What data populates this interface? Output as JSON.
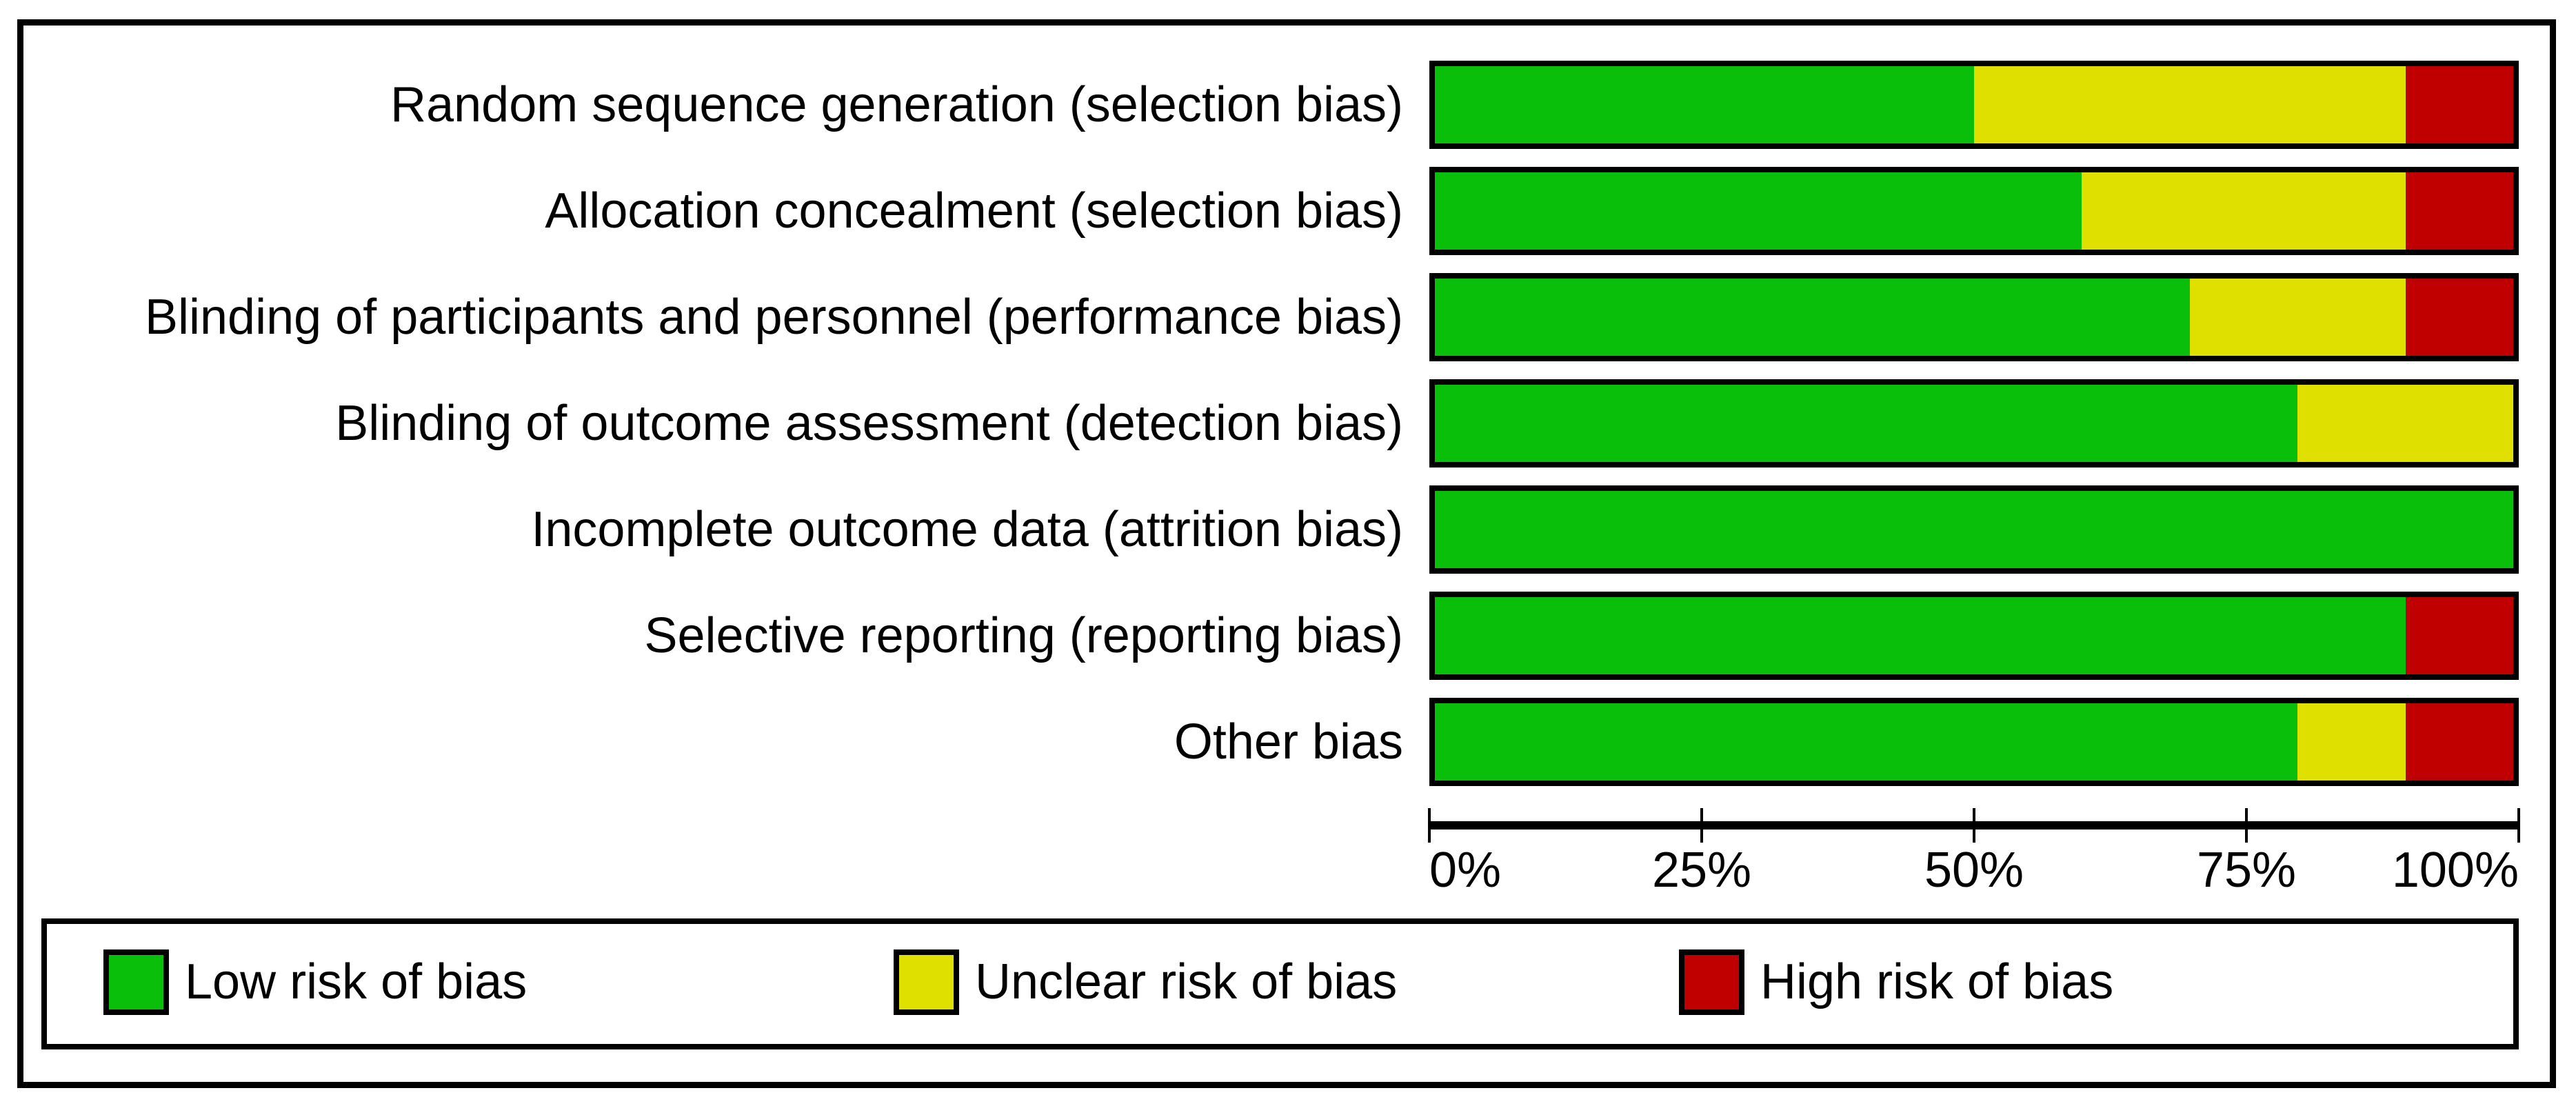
{
  "chart_data": {
    "type": "bar",
    "orientation": "horizontal",
    "stacked": true,
    "unit": "percent",
    "title": "",
    "categories": [
      "Random sequence generation (selection bias)",
      "Allocation concealment (selection bias)",
      "Blinding of participants and personnel (performance bias)",
      "Blinding of outcome assessment (detection bias)",
      "Incomplete outcome data (attrition bias)",
      "Selective reporting (reporting bias)",
      "Other bias"
    ],
    "series": [
      {
        "name": "Low risk of bias",
        "color": "#09BF09",
        "values": [
          50,
          60,
          70,
          80,
          100,
          90,
          80
        ]
      },
      {
        "name": "Unclear risk of bias",
        "color": "#DFDF00",
        "values": [
          40,
          30,
          20,
          20,
          0,
          0,
          10
        ]
      },
      {
        "name": "High risk of bias",
        "color": "#C00000",
        "values": [
          10,
          10,
          10,
          0,
          0,
          10,
          10
        ]
      }
    ],
    "xlim": [
      0,
      100
    ],
    "x_ticks": [
      "0%",
      "25%",
      "50%",
      "75%",
      "100%"
    ],
    "x_tick_values": [
      0,
      25,
      50,
      75,
      100
    ],
    "legend_position": "bottom",
    "grid": false,
    "colors": {
      "background": "#FFFFFF",
      "border": "#000000",
      "text": "#000000"
    }
  }
}
